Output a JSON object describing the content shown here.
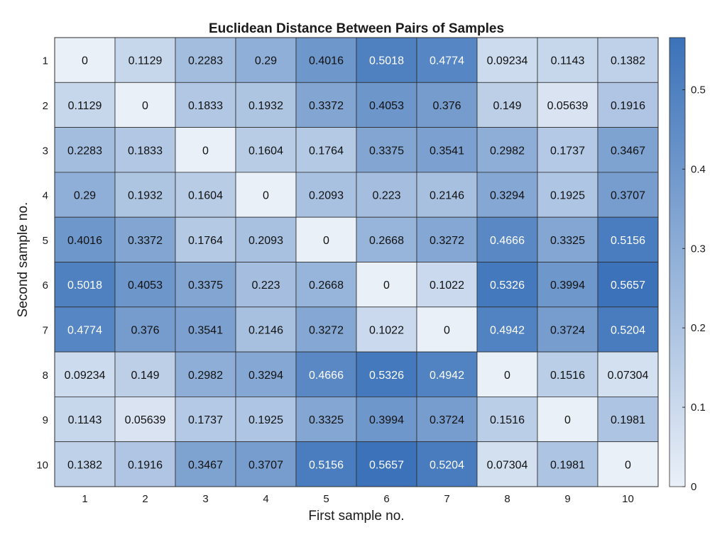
{
  "chart_data": {
    "type": "heatmap",
    "title": "Euclidean Distance Between Pairs of Samples",
    "xlabel": "First sample no.",
    "ylabel": "Second sample no.",
    "x_categories": [
      "1",
      "2",
      "3",
      "4",
      "5",
      "6",
      "7",
      "8",
      "9",
      "10"
    ],
    "y_categories": [
      "1",
      "2",
      "3",
      "4",
      "5",
      "6",
      "7",
      "8",
      "9",
      "10"
    ],
    "values": [
      [
        0,
        0.1129,
        0.2283,
        0.29,
        0.4016,
        0.5018,
        0.4774,
        0.09234,
        0.1143,
        0.1382
      ],
      [
        0.1129,
        0,
        0.1833,
        0.1932,
        0.3372,
        0.4053,
        0.376,
        0.149,
        0.05639,
        0.1916
      ],
      [
        0.2283,
        0.1833,
        0,
        0.1604,
        0.1764,
        0.3375,
        0.3541,
        0.2982,
        0.1737,
        0.3467
      ],
      [
        0.29,
        0.1932,
        0.1604,
        0,
        0.2093,
        0.223,
        0.2146,
        0.3294,
        0.1925,
        0.3707
      ],
      [
        0.4016,
        0.3372,
        0.1764,
        0.2093,
        0,
        0.2668,
        0.3272,
        0.4666,
        0.3325,
        0.5156
      ],
      [
        0.5018,
        0.4053,
        0.3375,
        0.223,
        0.2668,
        0,
        0.1022,
        0.5326,
        0.3994,
        0.5657
      ],
      [
        0.4774,
        0.376,
        0.3541,
        0.2146,
        0.3272,
        0.1022,
        0,
        0.4942,
        0.3724,
        0.5204
      ],
      [
        0.09234,
        0.149,
        0.2982,
        0.3294,
        0.4666,
        0.5326,
        0.4942,
        0,
        0.1516,
        0.07304
      ],
      [
        0.1143,
        0.05639,
        0.1737,
        0.1925,
        0.3325,
        0.3994,
        0.3724,
        0.1516,
        0,
        0.1981
      ],
      [
        0.1382,
        0.1916,
        0.3467,
        0.3707,
        0.5156,
        0.5657,
        0.5204,
        0.07304,
        0.1981,
        0
      ]
    ],
    "labels": [
      [
        "0",
        "0.1129",
        "0.2283",
        "0.29",
        "0.4016",
        "0.5018",
        "0.4774",
        "0.09234",
        "0.1143",
        "0.1382"
      ],
      [
        "0.1129",
        "0",
        "0.1833",
        "0.1932",
        "0.3372",
        "0.4053",
        "0.376",
        "0.149",
        "0.05639",
        "0.1916"
      ],
      [
        "0.2283",
        "0.1833",
        "0",
        "0.1604",
        "0.1764",
        "0.3375",
        "0.3541",
        "0.2982",
        "0.1737",
        "0.3467"
      ],
      [
        "0.29",
        "0.1932",
        "0.1604",
        "0",
        "0.2093",
        "0.223",
        "0.2146",
        "0.3294",
        "0.1925",
        "0.3707"
      ],
      [
        "0.4016",
        "0.3372",
        "0.1764",
        "0.2093",
        "0",
        "0.2668",
        "0.3272",
        "0.4666",
        "0.3325",
        "0.5156"
      ],
      [
        "0.5018",
        "0.4053",
        "0.3375",
        "0.223",
        "0.2668",
        "0",
        "0.1022",
        "0.5326",
        "0.3994",
        "0.5657"
      ],
      [
        "0.4774",
        "0.376",
        "0.3541",
        "0.2146",
        "0.3272",
        "0.1022",
        "0",
        "0.4942",
        "0.3724",
        "0.5204"
      ],
      [
        "0.09234",
        "0.149",
        "0.2982",
        "0.3294",
        "0.4666",
        "0.5326",
        "0.4942",
        "0",
        "0.1516",
        "0.07304"
      ],
      [
        "0.1143",
        "0.05639",
        "0.1737",
        "0.1925",
        "0.3325",
        "0.3994",
        "0.3724",
        "0.1516",
        "0",
        "0.1981"
      ],
      [
        "0.1382",
        "0.1916",
        "0.3467",
        "0.3707",
        "0.5156",
        "0.5657",
        "0.5204",
        "0.07304",
        "0.1981",
        "0"
      ]
    ],
    "colorbar": {
      "range": [
        0,
        0.5657
      ],
      "ticks": [
        0,
        0.1,
        0.2,
        0.3,
        0.4,
        0.5
      ],
      "tick_labels": [
        "0",
        "0.1",
        "0.2",
        "0.3",
        "0.4",
        "0.5"
      ],
      "low_color": "#eaf0f8",
      "high_color": "#3b72b9"
    },
    "label_color_dark": "#111111",
    "label_color_light": "#ffffff",
    "light_label_threshold": 0.45
  }
}
